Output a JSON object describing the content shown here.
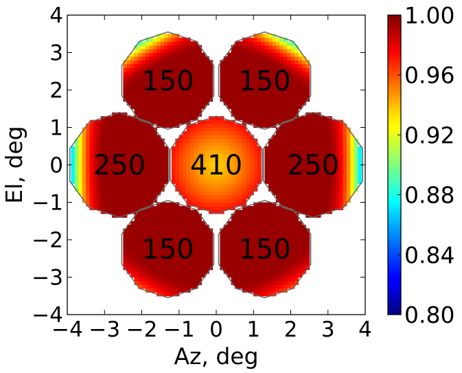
{
  "chart_data": {
    "type": "heatmap",
    "title": "",
    "xlabel": "Az, deg",
    "ylabel": "El, deg",
    "xlim": [
      -4,
      4
    ],
    "ylim": [
      -4,
      4
    ],
    "xticks": [
      -4,
      -3,
      -2,
      -1,
      0,
      1,
      2,
      3,
      4
    ],
    "yticks": [
      -4,
      -3,
      -2,
      -1,
      0,
      1,
      2,
      3,
      4
    ],
    "xtick_labels": [
      "−4",
      "−3",
      "−2",
      "−1",
      "0",
      "1",
      "2",
      "3",
      "4"
    ],
    "ytick_labels": [
      "−4",
      "−3",
      "−2",
      "−1",
      "0",
      "1",
      "2",
      "3",
      "4"
    ],
    "colormap": "jet",
    "colorbar": {
      "vmin": 0.8,
      "vmax": 1.0,
      "ticks": [
        0.8,
        0.84,
        0.88,
        0.92,
        0.96,
        1.0
      ],
      "tick_labels": [
        "0.80",
        "0.84",
        "0.88",
        "0.92",
        "0.96",
        "1.00"
      ]
    },
    "grid": false,
    "regions": [
      {
        "label": "410",
        "center": [
          0,
          0
        ],
        "r": 1.3,
        "min_value": 0.935,
        "max_value": 0.975,
        "profile": "center"
      },
      {
        "label": "250",
        "center": [
          -2.6,
          0
        ],
        "r": 1.4,
        "min_value": 0.82,
        "max_value": 0.995,
        "profile": "outer"
      },
      {
        "label": "250",
        "center": [
          2.6,
          0
        ],
        "r": 1.4,
        "min_value": 0.82,
        "max_value": 0.995,
        "profile": "outer"
      },
      {
        "label": "150",
        "center": [
          -1.3,
          2.25
        ],
        "r": 1.3,
        "min_value": 0.875,
        "max_value": 0.995,
        "profile": "outer"
      },
      {
        "label": "150",
        "center": [
          1.3,
          2.25
        ],
        "r": 1.3,
        "min_value": 0.875,
        "max_value": 0.995,
        "profile": "outer"
      },
      {
        "label": "150",
        "center": [
          -1.3,
          -2.25
        ],
        "r": 1.3,
        "min_value": 0.955,
        "max_value": 0.995,
        "profile": "outer"
      },
      {
        "label": "150",
        "center": [
          1.3,
          -2.25
        ],
        "r": 1.3,
        "min_value": 0.955,
        "max_value": 0.995,
        "profile": "outer"
      }
    ]
  }
}
